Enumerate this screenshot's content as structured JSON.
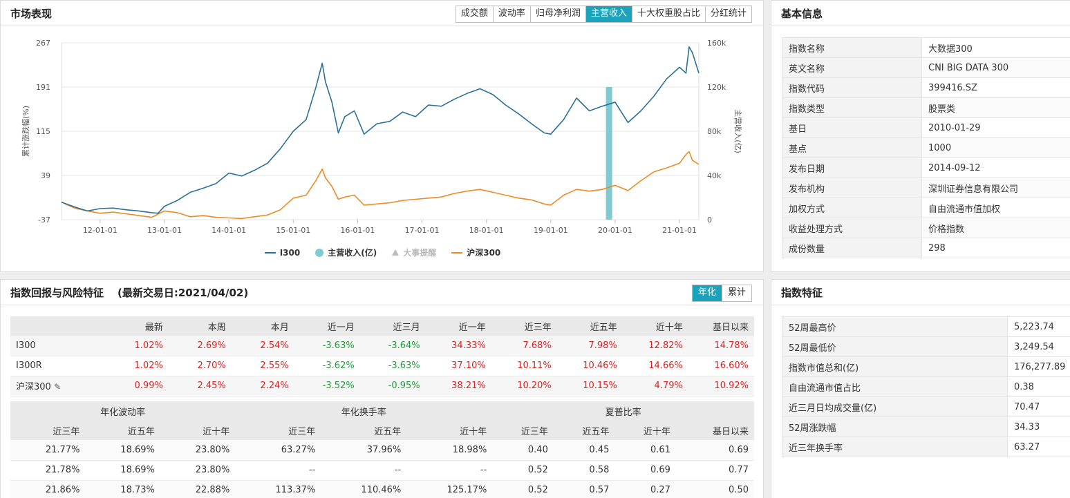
{
  "market": {
    "title": "市场表现",
    "tabs": [
      {
        "label": "成交额",
        "active": false
      },
      {
        "label": "波动率",
        "active": false
      },
      {
        "label": "归母净利润",
        "active": false
      },
      {
        "label": "主营收入",
        "active": true
      },
      {
        "label": "十大权重股占比",
        "active": false
      },
      {
        "label": "分红统计",
        "active": false
      }
    ],
    "legend": [
      "I300",
      "主营收入(亿)",
      "大事提醒",
      "沪深300"
    ]
  },
  "chart_data": {
    "type": "line",
    "ylabel": "累计涨跌幅(%)",
    "y2label": "主营收入(亿)",
    "y_ticks": [
      "267",
      "191",
      "115",
      "39",
      "-37"
    ],
    "y2_ticks": [
      "160k",
      "120k",
      "80k",
      "40k",
      "0"
    ],
    "ylim": [
      -37,
      267
    ],
    "y2lim": [
      0,
      160000
    ],
    "x_ticks": [
      "12-01-01",
      "13-01-01",
      "14-01-01",
      "15-01-01",
      "16-01-01",
      "17-01-01",
      "18-01-01",
      "19-01-01",
      "20-01-01",
      "21-01-01"
    ],
    "x_tick_years": [
      2012,
      2013,
      2014,
      2015,
      2016,
      2017,
      2018,
      2019,
      2020,
      2021
    ],
    "xlim": [
      2011.4,
      2021.3
    ],
    "colors": {
      "i300": "#2a6f97",
      "hs300": "#f08a24",
      "bar": "#7ecbd3",
      "grid": "#e6e6e6"
    },
    "series": [
      {
        "name": "I300",
        "x": [
          2011.4,
          2011.6,
          2011.8,
          2012.0,
          2012.2,
          2012.4,
          2012.6,
          2012.8,
          2012.9,
          2013.0,
          2013.2,
          2013.4,
          2013.6,
          2013.8,
          2014.0,
          2014.2,
          2014.4,
          2014.6,
          2014.8,
          2015.0,
          2015.2,
          2015.35,
          2015.45,
          2015.5,
          2015.6,
          2015.7,
          2015.8,
          2015.95,
          2016.1,
          2016.3,
          2016.5,
          2016.7,
          2016.9,
          2017.1,
          2017.3,
          2017.5,
          2017.7,
          2017.9,
          2018.1,
          2018.3,
          2018.5,
          2018.7,
          2018.9,
          2019.0,
          2019.2,
          2019.4,
          2019.6,
          2019.8,
          2020.0,
          2020.2,
          2020.4,
          2020.6,
          2020.8,
          2021.0,
          2021.1,
          2021.15,
          2021.2,
          2021.3
        ],
        "y": [
          -7,
          -15,
          -22,
          -18,
          -17,
          -20,
          -22,
          -25,
          -26,
          -14,
          -4,
          10,
          17,
          25,
          43,
          38,
          48,
          60,
          85,
          115,
          135,
          190,
          232,
          200,
          165,
          112,
          140,
          150,
          110,
          128,
          132,
          148,
          140,
          160,
          158,
          170,
          180,
          188,
          178,
          160,
          145,
          128,
          112,
          110,
          135,
          172,
          150,
          158,
          165,
          130,
          150,
          175,
          205,
          225,
          215,
          260,
          250,
          215
        ]
      },
      {
        "name": "沪深300",
        "x": [
          2011.4,
          2011.6,
          2011.8,
          2012.0,
          2012.2,
          2012.4,
          2012.6,
          2012.8,
          2013.0,
          2013.2,
          2013.4,
          2013.6,
          2013.8,
          2014.0,
          2014.2,
          2014.4,
          2014.6,
          2014.8,
          2015.0,
          2015.2,
          2015.35,
          2015.45,
          2015.5,
          2015.6,
          2015.7,
          2015.8,
          2015.95,
          2016.1,
          2016.3,
          2016.5,
          2016.7,
          2016.9,
          2017.1,
          2017.3,
          2017.5,
          2017.7,
          2017.9,
          2018.1,
          2018.3,
          2018.5,
          2018.7,
          2018.9,
          2019.0,
          2019.2,
          2019.4,
          2019.6,
          2019.8,
          2020.0,
          2020.2,
          2020.4,
          2020.6,
          2020.8,
          2021.0,
          2021.1,
          2021.15,
          2021.2,
          2021.3
        ],
        "y": [
          -7,
          -17,
          -22,
          -26,
          -24,
          -27,
          -30,
          -33,
          -22,
          -25,
          -32,
          -30,
          -33,
          -34,
          -35,
          -32,
          -29,
          -20,
          0,
          5,
          30,
          50,
          35,
          20,
          -2,
          2,
          5,
          -12,
          -10,
          -8,
          -4,
          -2,
          0,
          2,
          8,
          12,
          15,
          10,
          5,
          0,
          -3,
          -10,
          -12,
          5,
          15,
          12,
          15,
          22,
          13,
          30,
          45,
          52,
          60,
          75,
          80,
          65,
          58
        ]
      },
      {
        "name": "主营收入(亿)",
        "x": [
          2019.9
        ],
        "y": [
          120000
        ]
      }
    ]
  },
  "basic": {
    "title": "基本信息",
    "rows": [
      {
        "k": "指数名称",
        "v": "大数据300"
      },
      {
        "k": "英文名称",
        "v": "CNI BIG DATA 300"
      },
      {
        "k": "指数代码",
        "v": "399416.SZ"
      },
      {
        "k": "指数类型",
        "v": "股票类"
      },
      {
        "k": "基日",
        "v": "2010-01-29"
      },
      {
        "k": "基点",
        "v": "1000"
      },
      {
        "k": "发布日期",
        "v": "2014-09-12"
      },
      {
        "k": "发布机构",
        "v": "深圳证券信息有限公司"
      },
      {
        "k": "加权方式",
        "v": "自由流通市值加权"
      },
      {
        "k": "收益处理方式",
        "v": "价格指数"
      },
      {
        "k": "成份数量",
        "v": "298"
      }
    ]
  },
  "returns": {
    "title": "指数回报与风险特征",
    "subtitle": "(最新交易日:2021/04/02)",
    "toggle": [
      "年化",
      "累计"
    ],
    "headers": [
      "最新",
      "本周",
      "本月",
      "近一月",
      "近三月",
      "近一年",
      "近三年",
      "近五年",
      "近十年",
      "基日以来"
    ],
    "rows": [
      {
        "name": "I300",
        "values": [
          "1.02%",
          "2.69%",
          "2.54%",
          "-3.63%",
          "-3.64%",
          "34.33%",
          "7.68%",
          "7.98%",
          "12.82%",
          "14.78%"
        ]
      },
      {
        "name": "I300R",
        "values": [
          "1.02%",
          "2.70%",
          "2.55%",
          "-3.62%",
          "-3.63%",
          "37.10%",
          "10.11%",
          "10.46%",
          "14.66%",
          "16.60%"
        ]
      },
      {
        "name": "沪深300",
        "values": [
          "0.99%",
          "2.45%",
          "2.24%",
          "-3.52%",
          "-0.95%",
          "38.21%",
          "10.20%",
          "10.15%",
          "4.79%",
          "10.92%"
        ]
      }
    ],
    "edit_icon": "✎",
    "risk_groups": [
      "年化波动率",
      "年化换手率",
      "夏普比率"
    ],
    "risk_headers": [
      "近三年",
      "近五年",
      "近十年",
      "近三年",
      "近五年",
      "近十年",
      "近三年",
      "近五年",
      "近十年",
      "基日以来"
    ],
    "risk_rows": [
      [
        "21.77%",
        "18.69%",
        "23.80%",
        "63.27%",
        "37.96%",
        "18.98%",
        "0.40",
        "0.45",
        "0.61",
        "0.69"
      ],
      [
        "21.78%",
        "18.69%",
        "23.80%",
        "--",
        "--",
        "--",
        "0.52",
        "0.58",
        "0.69",
        "0.77"
      ],
      [
        "21.86%",
        "18.73%",
        "22.88%",
        "113.37%",
        "110.46%",
        "125.17%",
        "0.52",
        "0.57",
        "0.27",
        "0.50"
      ]
    ]
  },
  "features": {
    "title": "指数特征",
    "rows": [
      {
        "k": "52周最高价",
        "v": "5,223.74"
      },
      {
        "k": "52周最低价",
        "v": "3,249.54"
      },
      {
        "k": "指数市值总和(亿)",
        "v": "176,277.89"
      },
      {
        "k": "自由流通市值占比",
        "v": "0.38"
      },
      {
        "k": "近三月日均成交量(亿)",
        "v": "70.47"
      },
      {
        "k": "52周涨跌幅",
        "v": "34.33"
      },
      {
        "k": "近三年换手率",
        "v": "63.27"
      }
    ]
  }
}
